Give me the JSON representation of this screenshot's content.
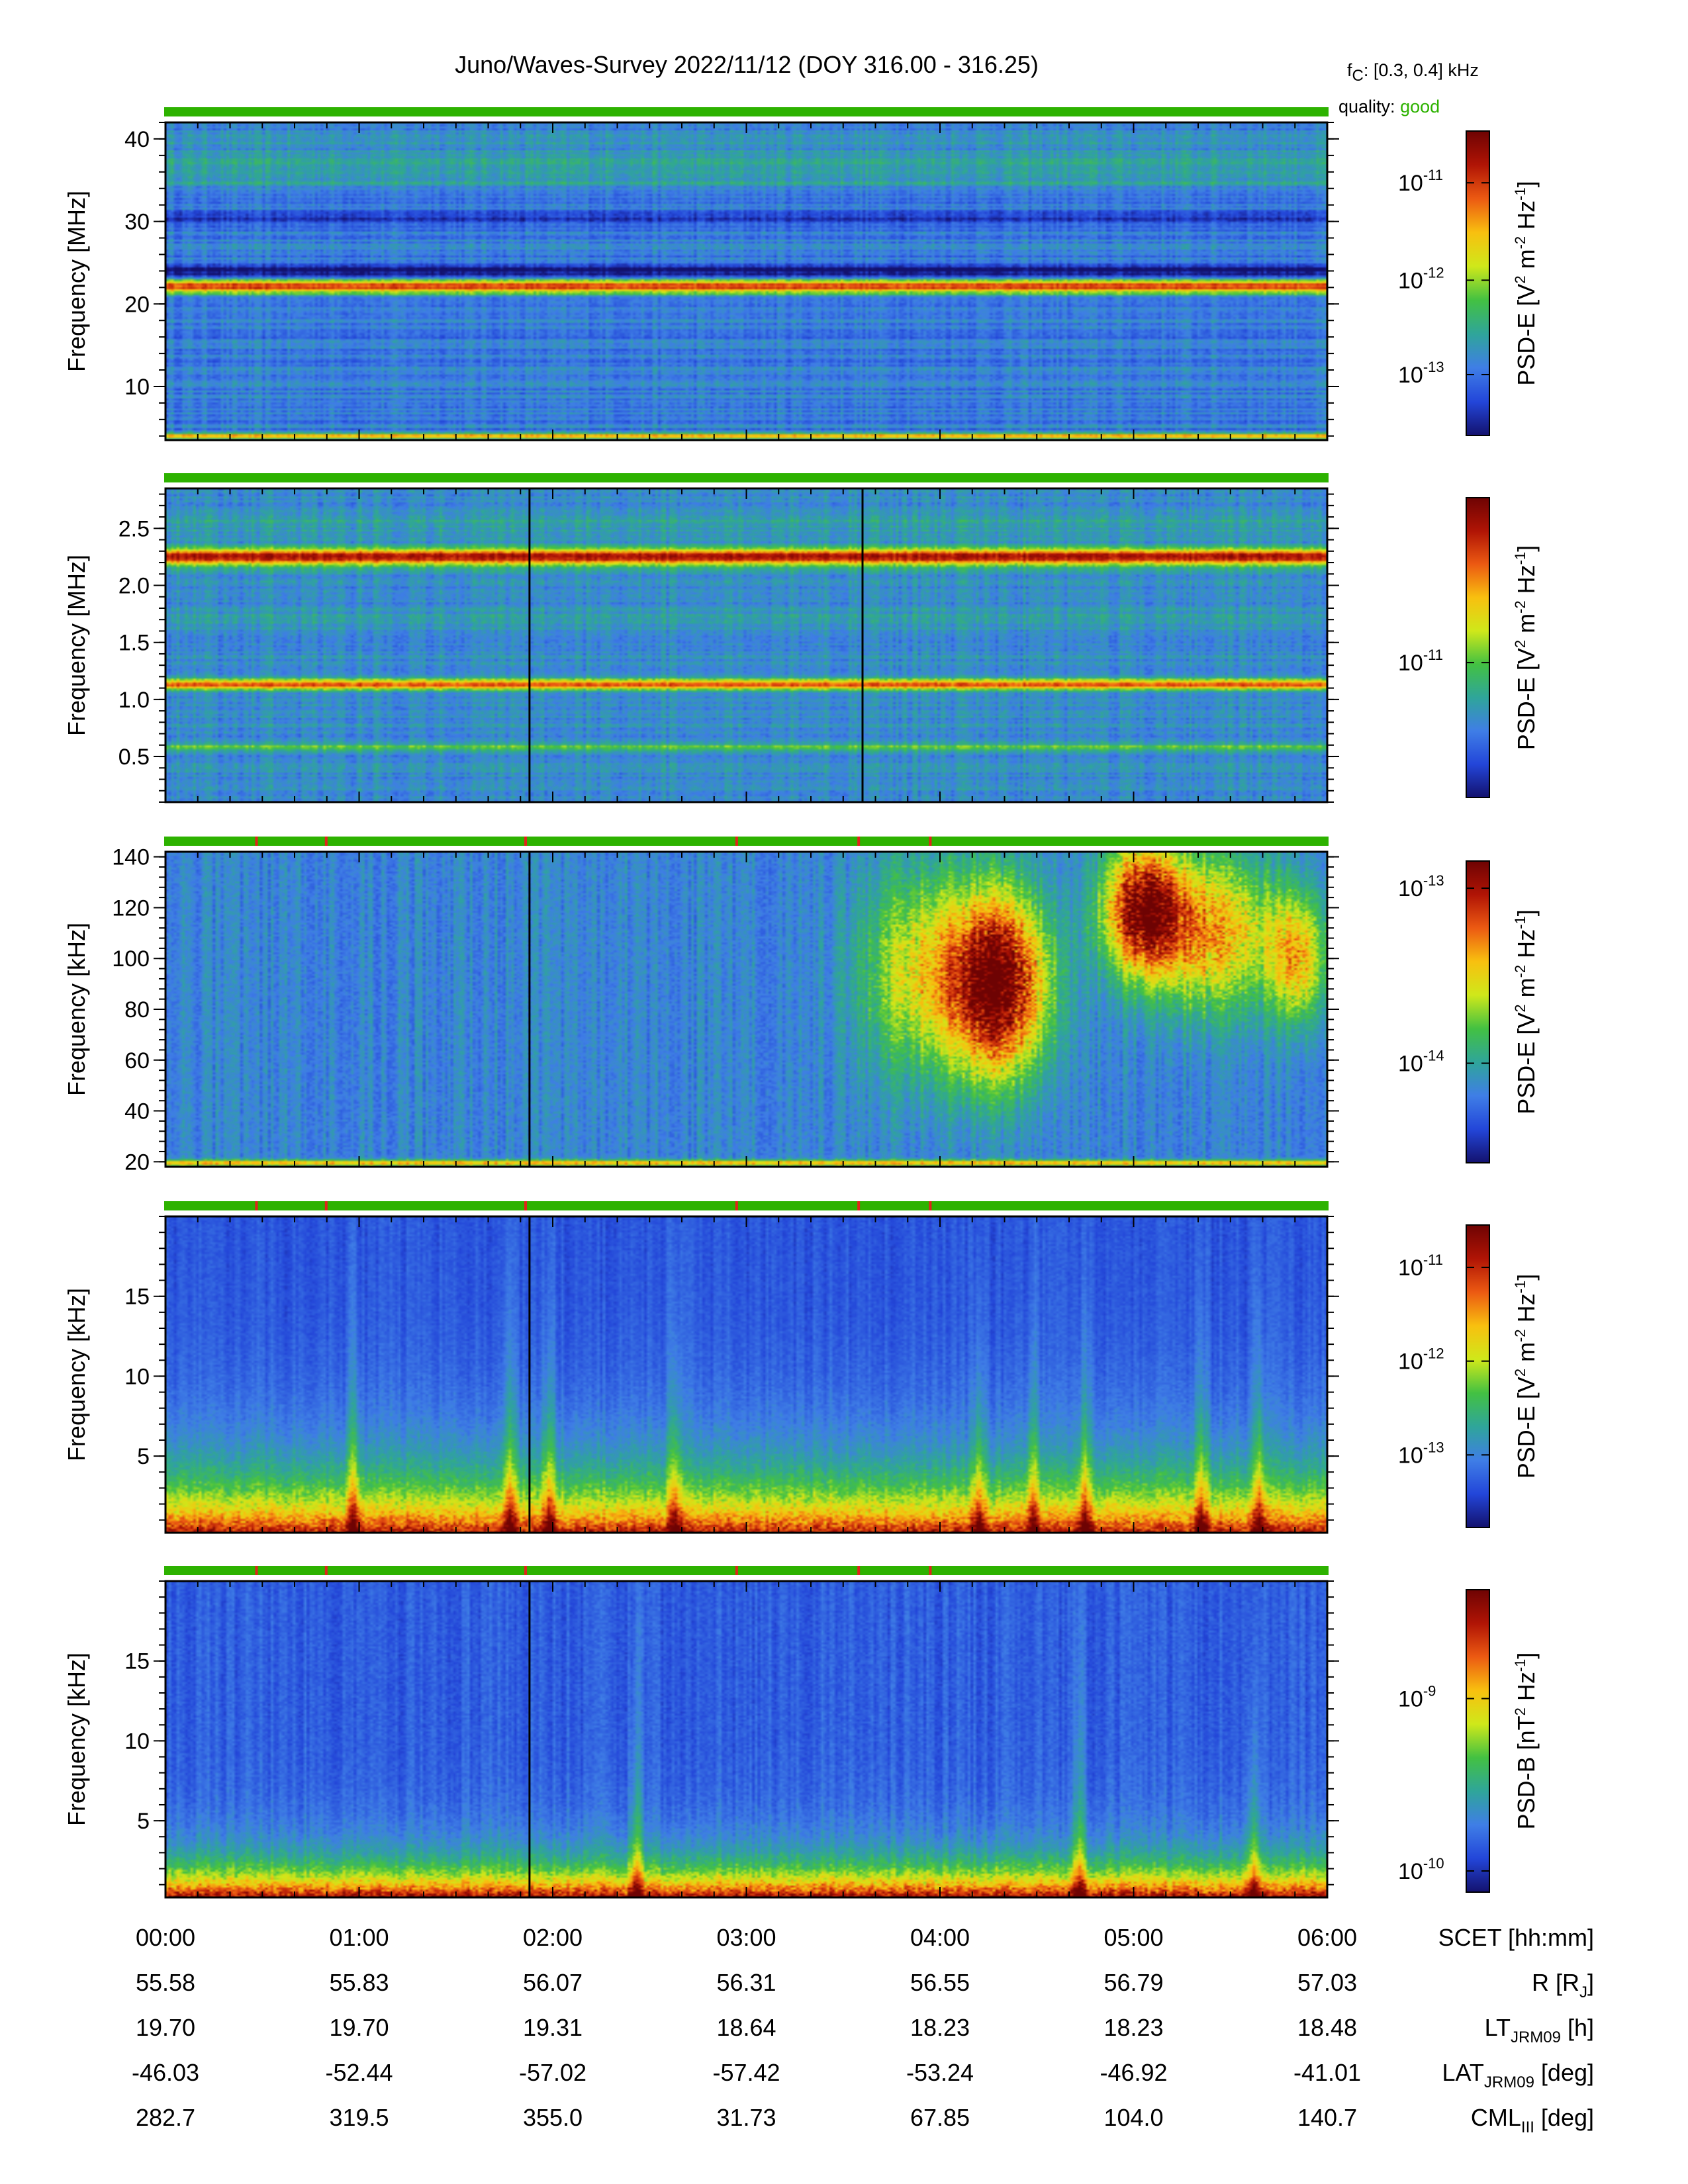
{
  "header": {
    "title": "Juno/Waves-Survey  2022/11/12 (DOY 316.00 - 316.25)",
    "fc_label": "f",
    "fc_sub": "C",
    "fc_value": ": [0.3, 0.4] kHz",
    "quality_label": "quality:",
    "quality_value": "good",
    "quality_color": "#2db200"
  },
  "colors": {
    "quality_good": "#2db200",
    "quality_flag": "#e0241a",
    "colormap": [
      "#13116e",
      "#2346d9",
      "#3f7ee6",
      "#2fa59a",
      "#43c142",
      "#cfe81a",
      "#f8c00f",
      "#ec5a12",
      "#b01405",
      "#6e0303"
    ]
  },
  "chart_data": [
    {
      "type": "heatmap",
      "ylabel": "Frequency [MHz]",
      "ylim": [
        3.5,
        42
      ],
      "yticks": [
        10,
        20,
        30,
        40
      ],
      "ytick_labels": [
        "10",
        "20",
        "30",
        "40"
      ],
      "colorbar": {
        "label": "PSD-E [V",
        "sup1": "2",
        "mid": " m",
        "sup2": "-2",
        "mid2": " Hz",
        "sup3": "-1",
        "end": "]",
        "tick_exponents": [
          "-11",
          "-12",
          "-13"
        ],
        "tick_positions": [
          0.17,
          0.49,
          0.8
        ]
      },
      "quality_flags_hours": [],
      "bands": [
        {
          "f": 22.2,
          "w": 0.9,
          "a": 0.62
        },
        {
          "f": 23.8,
          "w": 1.0,
          "a": -0.25
        },
        {
          "f": 30.5,
          "w": 0.6,
          "a": -0.12
        },
        {
          "f": 4.0,
          "w": 0.3,
          "a": 0.5
        },
        {
          "f": 35.5,
          "w": 1.5,
          "a": 0.08
        },
        {
          "f": 37.5,
          "w": 3.0,
          "a": 0.07
        }
      ],
      "base": 0.22,
      "noise": 0.06,
      "horizontal_stripes": 0.06
    },
    {
      "type": "heatmap",
      "ylabel": "Frequency [MHz]",
      "ylim": [
        0.1,
        2.85
      ],
      "yticks": [
        0.5,
        1.0,
        1.5,
        2.0,
        2.5
      ],
      "ytick_labels": [
        "0.5",
        "1.0",
        "1.5",
        "2.0",
        "2.5"
      ],
      "colorbar": {
        "label": "PSD-E [V",
        "sup1": "2",
        "mid": " m",
        "sup2": "-2",
        "mid2": " Hz",
        "sup3": "-1",
        "end": "]",
        "tick_exponents": [
          "-11"
        ],
        "tick_positions": [
          0.55
        ]
      },
      "quality_flags_hours": [],
      "vlines_hours": [
        1.88,
        3.6
      ],
      "bands": [
        {
          "f": 2.25,
          "w": 0.07,
          "a": 0.65
        },
        {
          "f": 1.13,
          "w": 0.045,
          "a": 0.55
        },
        {
          "f": 0.58,
          "w": 0.03,
          "a": 0.2
        },
        {
          "f": 2.55,
          "w": 0.08,
          "a": 0.06
        },
        {
          "f": 1.7,
          "w": 0.1,
          "a": 0.05
        }
      ],
      "base": 0.26,
      "noise": 0.07,
      "horizontal_stripes": 0.04
    },
    {
      "type": "heatmap",
      "ylabel": "Frequency [kHz]",
      "ylim": [
        18,
        142
      ],
      "yticks": [
        20,
        40,
        60,
        80,
        100,
        120,
        140
      ],
      "ytick_labels": [
        "20",
        "40",
        "60",
        "80",
        "100",
        "120",
        "140"
      ],
      "colorbar": {
        "label": "PSD-E [V",
        "sup1": "2",
        "mid": " m",
        "sup2": "-2",
        "mid2": " Hz",
        "sup3": "-1",
        "end": "]",
        "tick_exponents": [
          "-13",
          "-14"
        ],
        "tick_positions": [
          0.09,
          0.67
        ]
      },
      "quality_flags_hours": [
        0.47,
        0.83,
        1.86,
        2.95,
        3.58,
        3.95
      ],
      "vlines_hours": [
        1.88
      ],
      "blobs": [
        {
          "t": 4.3,
          "f": 90,
          "st": 0.25,
          "sf": 35,
          "a": 0.8
        },
        {
          "t": 5.05,
          "f": 120,
          "st": 0.2,
          "sf": 25,
          "a": 0.7
        },
        {
          "t": 5.4,
          "f": 110,
          "st": 0.35,
          "sf": 30,
          "a": 0.45
        },
        {
          "t": 3.9,
          "f": 95,
          "st": 0.3,
          "sf": 40,
          "a": 0.35
        },
        {
          "t": 5.85,
          "f": 100,
          "st": 0.15,
          "sf": 25,
          "a": 0.4
        }
      ],
      "bands": [
        {
          "f": 19.5,
          "w": 1.2,
          "a": 0.45
        }
      ],
      "base": 0.24,
      "noise": 0.08,
      "horizontal_stripes": 0.0
    },
    {
      "type": "heatmap",
      "ylabel": "Frequency [kHz]",
      "ylim": [
        0.2,
        20
      ],
      "yticks": [
        5,
        10,
        15
      ],
      "ytick_labels": [
        "5",
        "10",
        "15"
      ],
      "colorbar": {
        "label": "PSD-E [V",
        "sup1": "2",
        "mid": " m",
        "sup2": "-2",
        "mid2": " Hz",
        "sup3": "-1",
        "end": "]",
        "tick_exponents": [
          "-11",
          "-12",
          "-13"
        ],
        "tick_positions": [
          0.14,
          0.45,
          0.76
        ]
      },
      "quality_flags_hours": [
        0.47,
        0.83,
        1.86,
        2.95,
        3.58,
        3.95
      ],
      "vlines_hours": [
        1.88
      ],
      "lowfreq_rise": {
        "f0": 0.2,
        "scale": 3.2,
        "a": 0.75
      },
      "bursts_hours": [
        0.97,
        1.78,
        1.98,
        2.63,
        4.2,
        4.48,
        4.75,
        5.35,
        5.65
      ],
      "base": 0.14,
      "noise": 0.05,
      "horizontal_stripes": 0.0
    },
    {
      "type": "heatmap",
      "ylabel": "Frequency [kHz]",
      "ylim": [
        0.2,
        20
      ],
      "yticks": [
        5,
        10,
        15
      ],
      "ytick_labels": [
        "5",
        "10",
        "15"
      ],
      "colorbar": {
        "label": "PSD-B [nT",
        "sup1": "2",
        "mid": " Hz",
        "sup2": "-1",
        "mid2": "",
        "sup3": "",
        "end": "]",
        "tick_exponents": [
          "-9",
          "-10"
        ],
        "tick_positions": [
          0.36,
          0.93
        ]
      },
      "quality_flags_hours": [
        0.47,
        0.83,
        1.86,
        2.95,
        3.58,
        3.95
      ],
      "vlines_hours": [
        1.88
      ],
      "lowfreq_rise": {
        "f0": 0.2,
        "scale": 1.8,
        "a": 0.8
      },
      "bursts_hours": [
        2.43,
        4.72,
        5.62
      ],
      "base": 0.16,
      "noise": 0.06,
      "horizontal_stripes": 0.0
    }
  ],
  "footer": {
    "time_ticks": [
      "00:00",
      "01:00",
      "02:00",
      "03:00",
      "04:00",
      "05:00",
      "06:00"
    ],
    "rows": [
      {
        "values": [
          "55.58",
          "55.83",
          "56.07",
          "56.31",
          "56.55",
          "56.79",
          "57.03"
        ],
        "label": "R [R",
        "label_sub": "J",
        "label_end": "]"
      },
      {
        "values": [
          "19.70",
          "19.70",
          "19.31",
          "18.64",
          "18.23",
          "18.23",
          "18.48"
        ],
        "label": "LT",
        "label_sub": "JRM09",
        "label_end": " [h]"
      },
      {
        "values": [
          "-46.03",
          "-52.44",
          "-57.02",
          "-57.42",
          "-53.24",
          "-46.92",
          "-41.01"
        ],
        "label": "LAT",
        "label_sub": "JRM09",
        "label_end": " [deg]"
      },
      {
        "values": [
          "282.7",
          "319.5",
          "355.0",
          "31.73",
          "67.85",
          "104.0",
          "140.7"
        ],
        "label": "CML",
        "label_sub": "III",
        "label_end": " [deg]"
      }
    ],
    "time_label": "SCET [hh:mm]",
    "x_range_hours": [
      0,
      6
    ]
  }
}
